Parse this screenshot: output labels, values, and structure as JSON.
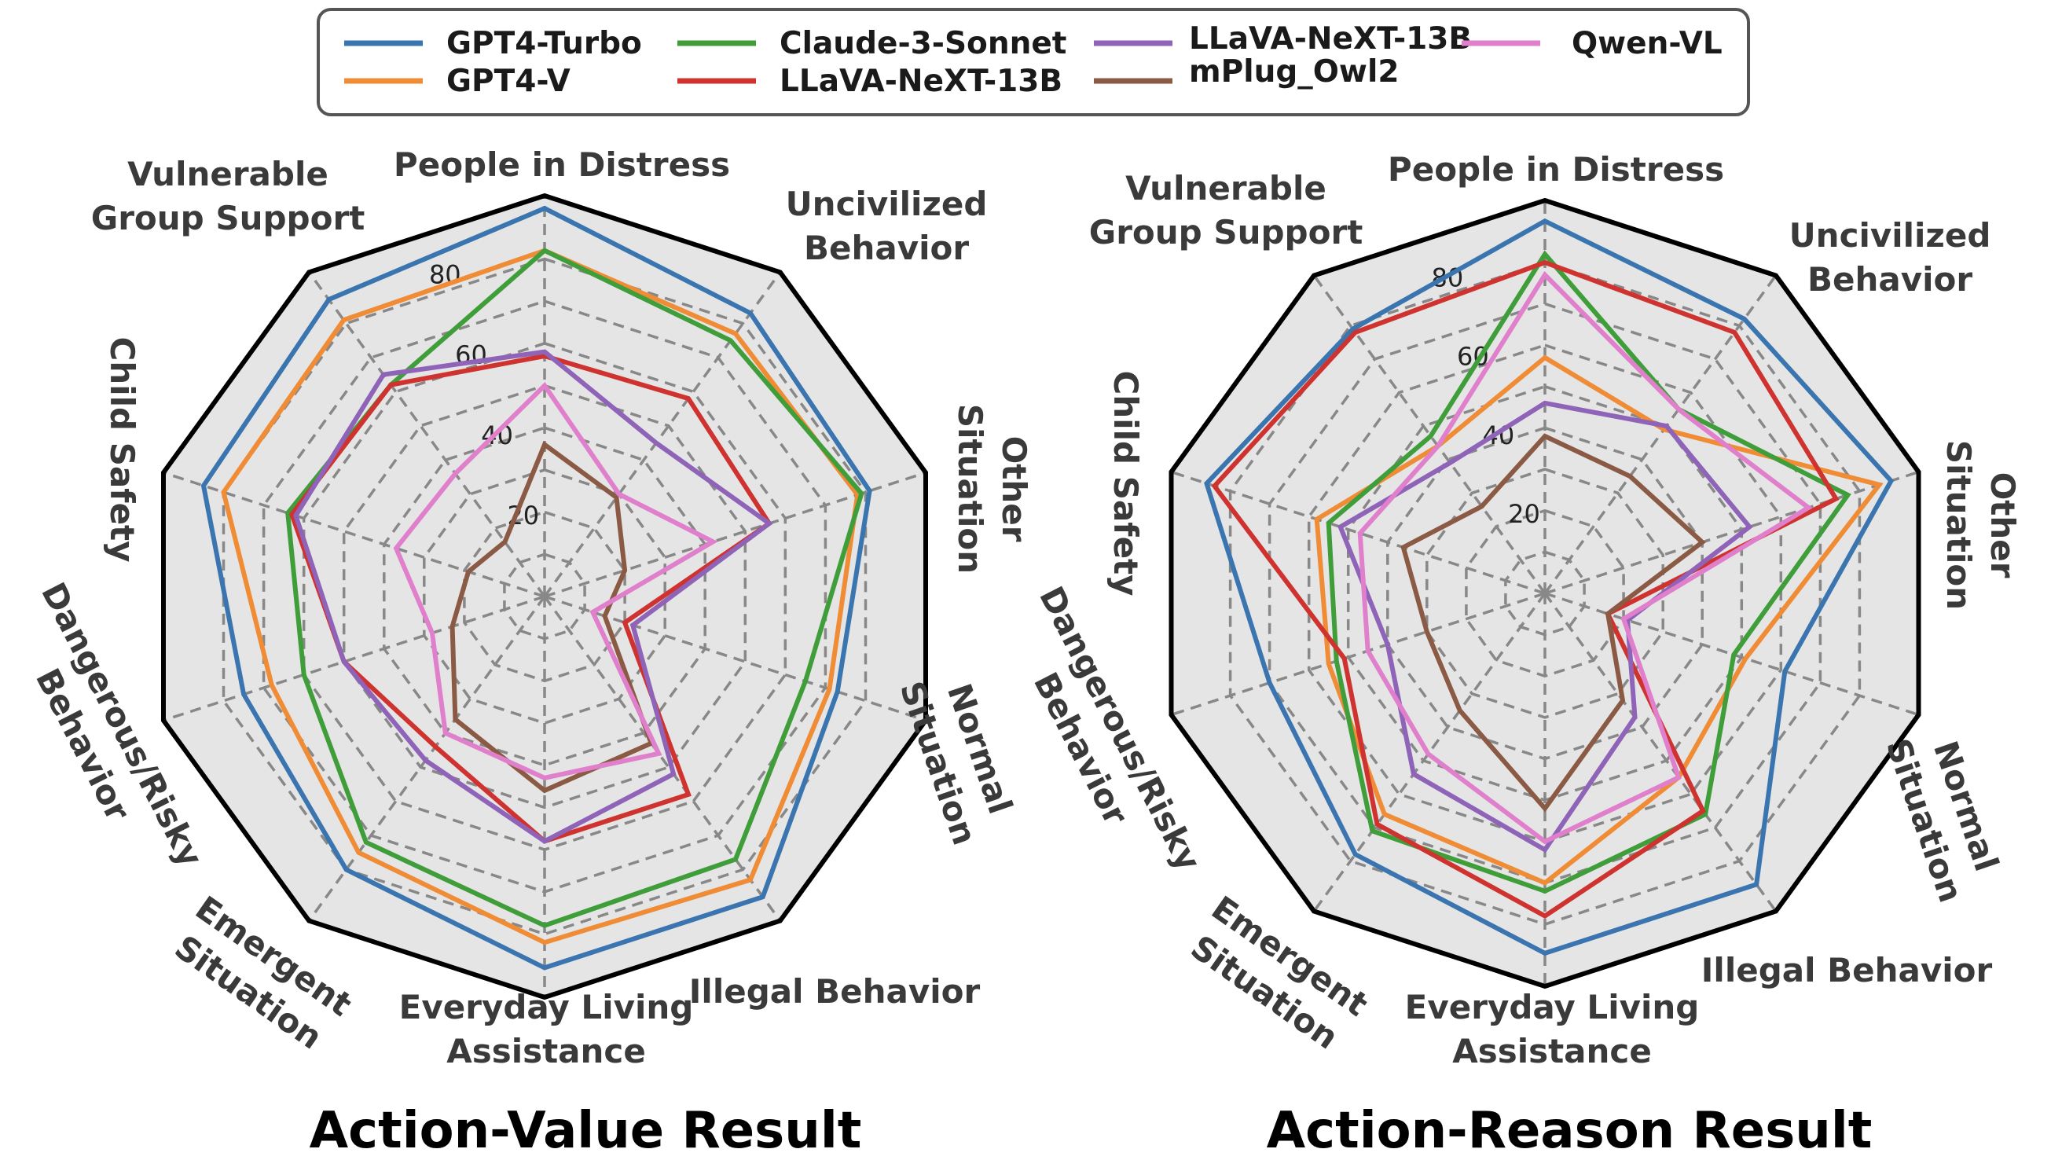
{
  "legend": {
    "entries": [
      {
        "name": "GPT4-Turbo",
        "color": "#3a75b0"
      },
      {
        "name": "GPT4-V",
        "color": "#ef8c35"
      },
      {
        "name": "Claude-3-Sonnet",
        "color": "#3f9e3a"
      },
      {
        "name": "LLaVA-NeXT-13B",
        "color": "#cf3330"
      },
      {
        "name": "LLaVA-NeXT-13B",
        "color": "#8e63b8"
      },
      {
        "name": "mPlug_Owl2",
        "color": "#8b5a44"
      },
      {
        "name": "Qwen-VL",
        "color": "#e07fcb"
      }
    ]
  },
  "chart_data": [
    {
      "type": "radar",
      "title": "Action-Value Result",
      "axes": [
        "People in Distress",
        "Uncivilized Behavior",
        "Other Situation",
        "Normal Situation",
        "Illegal Behavior",
        "Everyday Living Assistance",
        "Emergent Situation",
        "Dangerous/Risky Behavior",
        "Child Safety",
        "Vulnerable Group Support"
      ],
      "ticks": [
        20,
        40,
        60,
        80
      ],
      "rmax": 95,
      "series": [
        {
          "name": "GPT4-Turbo",
          "color": "#3a75b0",
          "values": [
            92,
            83,
            81,
            73,
            88,
            88,
            80,
            75,
            85,
            87
          ]
        },
        {
          "name": "GPT4-V",
          "color": "#ef8c35",
          "values": [
            82,
            77,
            78,
            71,
            83,
            82,
            75,
            68,
            80,
            81
          ]
        },
        {
          "name": "Claude-3-Sonnet",
          "color": "#3f9e3a",
          "values": [
            82,
            75,
            79,
            65,
            77,
            78,
            72,
            60,
            64,
            62
          ]
        },
        {
          "name": "LLaVA-NeXT-13B",
          "color": "#cf3330",
          "values": [
            57,
            58,
            56,
            20,
            58,
            58,
            44,
            50,
            63,
            62
          ]
        },
        {
          "name": "LLaVA-NeXT-13B",
          "color": "#8e63b8",
          "values": [
            58,
            45,
            56,
            22,
            52,
            58,
            48,
            50,
            62,
            65
          ]
        },
        {
          "name": "mPlug_Owl2",
          "color": "#8b5a44",
          "values": [
            36,
            29,
            20,
            15,
            43,
            46,
            36,
            23,
            19,
            16
          ]
        },
        {
          "name": "Qwen-VL",
          "color": "#e07fcb",
          "values": [
            50,
            30,
            42,
            12,
            46,
            43,
            40,
            28,
            37,
            36
          ]
        }
      ]
    },
    {
      "type": "radar",
      "title": "Action-Reason Result",
      "axes": [
        "People in Distress",
        "Uncivilized Behavior",
        "Other Situation",
        "Normal Situation",
        "Illegal Behavior",
        "Everyday Living Assistance",
        "Emergent Situation",
        "Dangerous/Risky Behavior",
        "Child Safety",
        "Vulnerable Group Support"
      ],
      "ticks": [
        20,
        40,
        60,
        80
      ],
      "rmax": 95,
      "series": [
        {
          "name": "GPT4-Turbo",
          "color": "#3a75b0",
          "values": [
            90,
            82,
            88,
            61,
            87,
            87,
            78,
            70,
            86,
            79
          ]
        },
        {
          "name": "GPT4-V",
          "color": "#ef8c35",
          "values": [
            57,
            49,
            85,
            51,
            55,
            70,
            66,
            55,
            58,
            44
          ]
        },
        {
          "name": "Claude-3-Sonnet",
          "color": "#3f9e3a",
          "values": [
            82,
            55,
            77,
            48,
            66,
            72,
            71,
            53,
            55,
            47
          ]
        },
        {
          "name": "LLaVA-NeXT-13B",
          "color": "#cf3330",
          "values": [
            80,
            78,
            74,
            16,
            65,
            78,
            69,
            51,
            84,
            78
          ]
        },
        {
          "name": "LLaVA-NeXT-13B",
          "color": "#8e63b8",
          "values": [
            46,
            50,
            52,
            21,
            37,
            62,
            54,
            40,
            52,
            39
          ]
        },
        {
          "name": "mPlug_Owl2",
          "color": "#8b5a44",
          "values": [
            38,
            35,
            40,
            16,
            32,
            52,
            35,
            30,
            36,
            26
          ]
        },
        {
          "name": "Qwen-VL",
          "color": "#e07fcb",
          "values": [
            77,
            55,
            67,
            20,
            55,
            60,
            48,
            45,
            47,
            44
          ]
        }
      ]
    }
  ]
}
